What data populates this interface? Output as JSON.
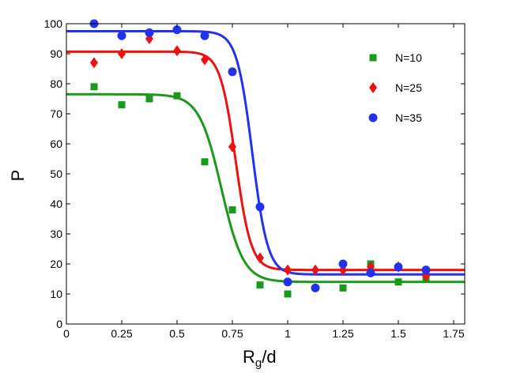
{
  "chart_data": {
    "type": "scatter",
    "title": "",
    "xlabel_main": "R",
    "xlabel_sub": "g",
    "xlabel_tail": "/d",
    "ylabel": "P",
    "xlim": [
      0,
      1.8
    ],
    "ylim": [
      0,
      100
    ],
    "x_ticks": [
      0,
      0.25,
      0.5,
      0.75,
      1,
      1.25,
      1.5,
      1.75
    ],
    "x_tick_labels": [
      "0",
      "0.25",
      "0.5",
      "0.75",
      "1",
      "1.25",
      "1.5",
      "1.75"
    ],
    "y_ticks": [
      0,
      10,
      20,
      30,
      40,
      50,
      60,
      70,
      80,
      90,
      100
    ],
    "y_tick_labels": [
      "0",
      "10",
      "20",
      "30",
      "40",
      "50",
      "60",
      "70",
      "80",
      "90",
      "100"
    ],
    "grid": false,
    "legend_position": "top-right",
    "series": [
      {
        "name": "N=10",
        "color": "#1a9a1a",
        "marker": "square",
        "x": [
          0.125,
          0.25,
          0.375,
          0.5,
          0.625,
          0.75,
          0.875,
          1.0,
          1.25,
          1.375,
          1.5,
          1.625
        ],
        "y": [
          79,
          73,
          75,
          76,
          54,
          38,
          13,
          10,
          12,
          20,
          14,
          15
        ],
        "fit": {
          "high": 76.5,
          "low": 14,
          "midpoint": 0.7,
          "width": 0.05
        }
      },
      {
        "name": "N=25",
        "color": "#ee1111",
        "marker": "diamond",
        "x": [
          0.125,
          0.25,
          0.375,
          0.5,
          0.625,
          0.75,
          0.875,
          1.0,
          1.125,
          1.25,
          1.375,
          1.5,
          1.625
        ],
        "y": [
          87,
          90,
          95,
          91,
          88,
          59,
          22,
          18,
          18,
          18,
          19,
          19,
          16
        ],
        "fit": {
          "high": 90.7,
          "low": 18,
          "midpoint": 0.765,
          "width": 0.035
        }
      },
      {
        "name": "N=35",
        "color": "#2233ee",
        "marker": "circle",
        "x": [
          0.125,
          0.25,
          0.375,
          0.5,
          0.625,
          0.75,
          0.875,
          1.0,
          1.125,
          1.25,
          1.375,
          1.5,
          1.625
        ],
        "y": [
          100,
          96,
          97,
          98,
          96,
          84,
          39,
          14,
          12,
          20,
          17,
          19,
          18
        ],
        "fit": {
          "high": 97.5,
          "low": 16.5,
          "midpoint": 0.84,
          "width": 0.035
        }
      }
    ]
  }
}
